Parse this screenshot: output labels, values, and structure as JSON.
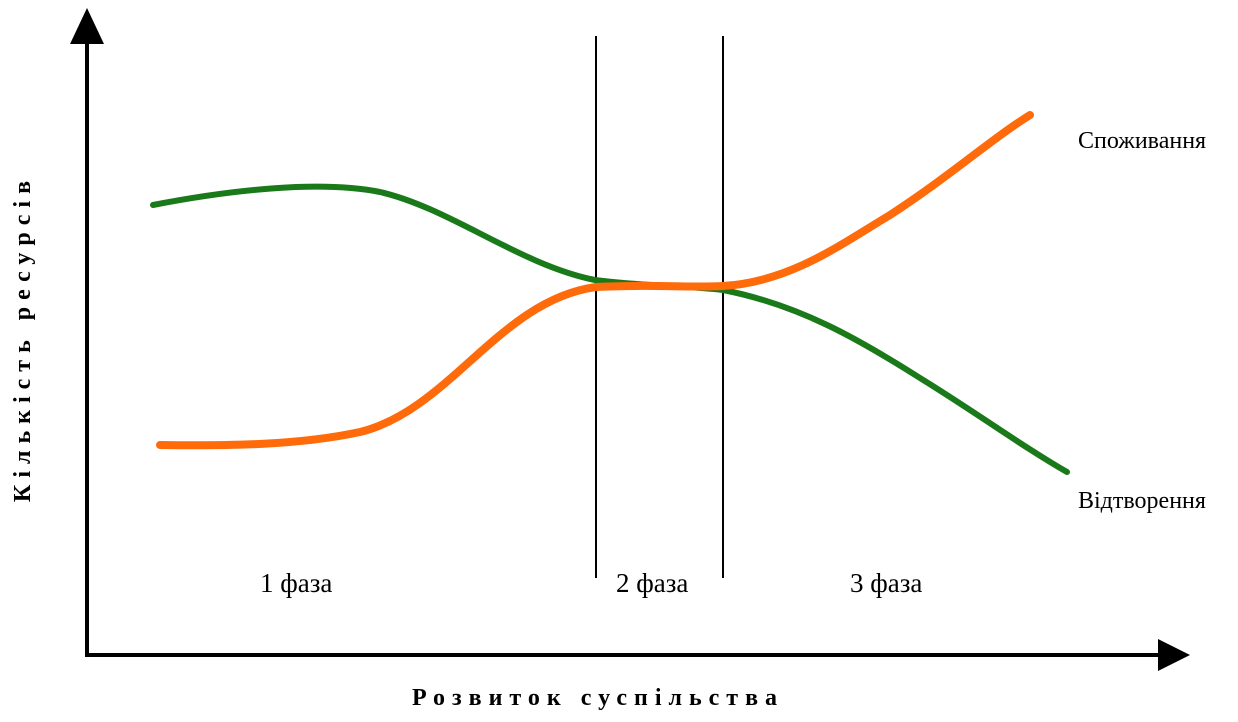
{
  "diagram": {
    "y_axis_title": "Кількість ресурсів",
    "x_axis_title": "Розвиток суспільства",
    "phases": [
      "1 фаза",
      "2 фаза",
      "3 фаза"
    ],
    "series": [
      {
        "name": "Споживання",
        "color": "#ff6a0a"
      },
      {
        "name": "Відтворення",
        "color": "#1a7a1a"
      }
    ],
    "axis_color": "#000000"
  }
}
